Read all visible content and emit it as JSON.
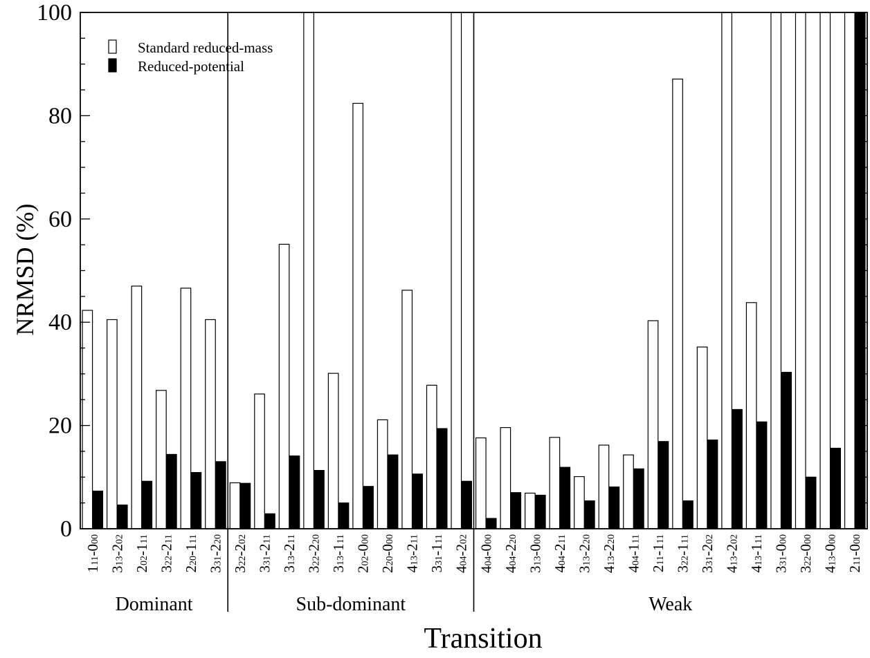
{
  "chart_data": {
    "type": "bar",
    "ylabel": "NRMSD (%)",
    "xlabel": "Transition",
    "ylim": [
      0,
      100
    ],
    "yticks": [
      0,
      20,
      40,
      60,
      80,
      100
    ],
    "legend_position": "top-left",
    "series": [
      {
        "name": "Standard reduced-mass",
        "color": "#ffffff",
        "values": [
          42.3,
          40.5,
          47.0,
          26.8,
          46.6,
          40.5,
          8.9,
          26.1,
          55.1,
          100,
          30.1,
          82.4,
          21.1,
          46.2,
          27.8,
          100,
          17.6,
          19.6,
          6.9,
          17.7,
          10.1,
          16.2,
          14.3,
          40.3,
          87.1,
          35.2,
          100,
          43.8,
          100,
          100,
          100,
          100
        ]
      },
      {
        "name": "Reduced-potential",
        "color": "#000000",
        "values": [
          7.3,
          4.6,
          9.2,
          14.4,
          10.9,
          13.0,
          8.8,
          2.9,
          14.1,
          11.3,
          5.0,
          8.2,
          14.3,
          10.6,
          19.4,
          9.2,
          2.0,
          7.0,
          6.5,
          11.9,
          5.4,
          8.1,
          11.6,
          16.9,
          5.4,
          17.2,
          23.1,
          20.7,
          30.3,
          10.0,
          15.6,
          100
        ]
      }
    ],
    "categories": [
      {
        "parts": [
          [
            "1",
            ""
          ],
          [
            "11",
            "s"
          ],
          [
            "-0",
            ""
          ],
          [
            "00",
            "s"
          ]
        ]
      },
      {
        "parts": [
          [
            "3",
            ""
          ],
          [
            "13",
            "s"
          ],
          [
            "-2",
            ""
          ],
          [
            "02",
            "s"
          ]
        ]
      },
      {
        "parts": [
          [
            "2",
            ""
          ],
          [
            "02",
            "s"
          ],
          [
            "-1",
            ""
          ],
          [
            "11",
            "s"
          ]
        ]
      },
      {
        "parts": [
          [
            "3",
            ""
          ],
          [
            "22",
            "s"
          ],
          [
            "-2",
            ""
          ],
          [
            "11",
            "s"
          ]
        ]
      },
      {
        "parts": [
          [
            "2",
            ""
          ],
          [
            "20",
            "s"
          ],
          [
            "-1",
            ""
          ],
          [
            "11",
            "s"
          ]
        ]
      },
      {
        "parts": [
          [
            "3",
            ""
          ],
          [
            "31",
            "s"
          ],
          [
            "-2",
            ""
          ],
          [
            "20",
            "s"
          ]
        ]
      },
      {
        "parts": [
          [
            "3",
            ""
          ],
          [
            "22",
            "s"
          ],
          [
            "-2",
            ""
          ],
          [
            "02",
            "s"
          ]
        ]
      },
      {
        "parts": [
          [
            "3",
            ""
          ],
          [
            "31",
            "s"
          ],
          [
            "-2",
            ""
          ],
          [
            "11",
            "s"
          ]
        ]
      },
      {
        "parts": [
          [
            "3",
            ""
          ],
          [
            "13",
            "s"
          ],
          [
            "-2",
            ""
          ],
          [
            "11",
            "s"
          ]
        ]
      },
      {
        "parts": [
          [
            "3",
            ""
          ],
          [
            "22",
            "s"
          ],
          [
            "-2",
            ""
          ],
          [
            "20",
            "s"
          ]
        ]
      },
      {
        "parts": [
          [
            "3",
            ""
          ],
          [
            "13",
            "s"
          ],
          [
            "-1",
            ""
          ],
          [
            "11",
            "s"
          ]
        ]
      },
      {
        "parts": [
          [
            "2",
            ""
          ],
          [
            "02",
            "s"
          ],
          [
            "-0",
            ""
          ],
          [
            "00",
            "s"
          ]
        ]
      },
      {
        "parts": [
          [
            "2",
            ""
          ],
          [
            "20",
            "s"
          ],
          [
            "-0",
            ""
          ],
          [
            "00",
            "s"
          ]
        ]
      },
      {
        "parts": [
          [
            "4",
            ""
          ],
          [
            "13",
            "s"
          ],
          [
            "-2",
            ""
          ],
          [
            "11",
            "s"
          ]
        ]
      },
      {
        "parts": [
          [
            "3",
            ""
          ],
          [
            "31",
            "s"
          ],
          [
            "-1",
            ""
          ],
          [
            "11",
            "s"
          ]
        ]
      },
      {
        "parts": [
          [
            "4",
            ""
          ],
          [
            "04",
            "s"
          ],
          [
            "-2",
            ""
          ],
          [
            "02",
            "s"
          ]
        ]
      },
      {
        "parts": [
          [
            "4",
            ""
          ],
          [
            "04",
            "s"
          ],
          [
            "-0",
            ""
          ],
          [
            "00",
            "s"
          ]
        ]
      },
      {
        "parts": [
          [
            "4",
            ""
          ],
          [
            "04",
            "s"
          ],
          [
            "-2",
            ""
          ],
          [
            "20",
            "s"
          ]
        ]
      },
      {
        "parts": [
          [
            "3",
            ""
          ],
          [
            "13",
            "s"
          ],
          [
            "-0",
            ""
          ],
          [
            "00",
            "s"
          ]
        ]
      },
      {
        "parts": [
          [
            "4",
            ""
          ],
          [
            "04",
            "s"
          ],
          [
            "-2",
            ""
          ],
          [
            "11",
            "s"
          ]
        ]
      },
      {
        "parts": [
          [
            "3",
            ""
          ],
          [
            "13",
            "s"
          ],
          [
            "-2",
            ""
          ],
          [
            "20",
            "s"
          ]
        ]
      },
      {
        "parts": [
          [
            "4",
            ""
          ],
          [
            "13",
            "s"
          ],
          [
            "-2",
            ""
          ],
          [
            "20",
            "s"
          ]
        ]
      },
      {
        "parts": [
          [
            "4",
            ""
          ],
          [
            "04",
            "s"
          ],
          [
            "-1",
            ""
          ],
          [
            "11",
            "s"
          ]
        ]
      },
      {
        "parts": [
          [
            "2",
            ""
          ],
          [
            "11",
            "s"
          ],
          [
            "-1",
            ""
          ],
          [
            "11",
            "s"
          ]
        ]
      },
      {
        "parts": [
          [
            "3",
            ""
          ],
          [
            "22",
            "s"
          ],
          [
            "-1",
            ""
          ],
          [
            "11",
            "s"
          ]
        ]
      },
      {
        "parts": [
          [
            "3",
            ""
          ],
          [
            "31",
            "s"
          ],
          [
            "-2",
            ""
          ],
          [
            "02",
            "s"
          ]
        ]
      },
      {
        "parts": [
          [
            "4",
            ""
          ],
          [
            "13",
            "s"
          ],
          [
            "-2",
            ""
          ],
          [
            "02",
            "s"
          ]
        ]
      },
      {
        "parts": [
          [
            "4",
            ""
          ],
          [
            "13",
            "s"
          ],
          [
            "-1",
            ""
          ],
          [
            "11",
            "s"
          ]
        ]
      },
      {
        "parts": [
          [
            "3",
            ""
          ],
          [
            "31",
            "s"
          ],
          [
            "-0",
            ""
          ],
          [
            "00",
            "s"
          ]
        ]
      },
      {
        "parts": [
          [
            "3",
            ""
          ],
          [
            "22",
            "s"
          ],
          [
            "-0",
            ""
          ],
          [
            "00",
            "s"
          ]
        ]
      },
      {
        "parts": [
          [
            "4",
            ""
          ],
          [
            "13",
            "s"
          ],
          [
            "-0",
            ""
          ],
          [
            "00",
            "s"
          ]
        ]
      },
      {
        "parts": [
          [
            "2",
            ""
          ],
          [
            "11",
            "s"
          ],
          [
            "-0",
            ""
          ],
          [
            "00",
            "s"
          ]
        ]
      }
    ],
    "groups": [
      {
        "name": "Dominant",
        "start": 0,
        "end": 5
      },
      {
        "name": "Sub-dominant",
        "start": 6,
        "end": 15
      },
      {
        "name": "Weak",
        "start": 16,
        "end": 31
      }
    ]
  }
}
